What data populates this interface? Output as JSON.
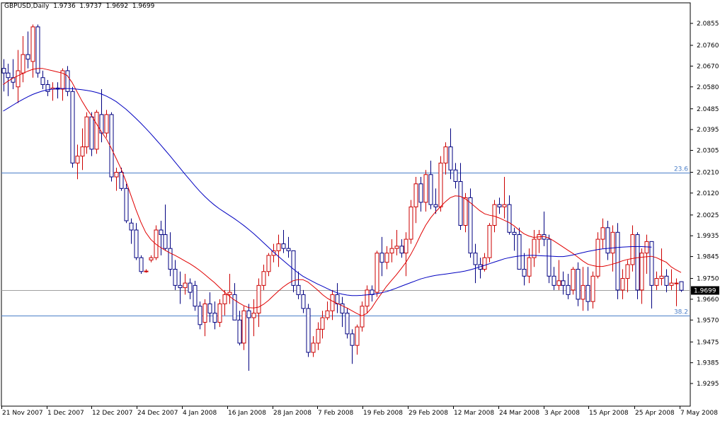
{
  "header": {
    "symbol": "GBPUSD,Daily",
    "ohlc": "1.9736  1.9737  1.9692  1.9699"
  },
  "colors": {
    "background": "#ffffff",
    "frame": "#000000",
    "bull_candle": "#cc0000",
    "bear_candle": "#000080",
    "ma_fast": "#e00000",
    "ma_slow": "#0000c0",
    "fib_line": "#4a7ec8",
    "price_line": "#a0a0a0",
    "price_label_bg": "#000000",
    "price_label_text": "#ffffff"
  },
  "chart_data": {
    "type": "candlestick",
    "ylim": [
      1.9295,
      2.0895
    ],
    "y_ticks": [
      "2.0855",
      "2.0760",
      "2.0670",
      "2.0580",
      "2.0485",
      "2.0395",
      "2.0305",
      "2.0210",
      "2.0120",
      "2.0025",
      "1.9935",
      "1.9845",
      "1.9750",
      "1.9660",
      "1.9570",
      "1.9475",
      "1.9385",
      "1.9295"
    ],
    "x_labels": [
      "21 Nov 2007",
      "1 Dec 2007",
      "12 Dec 2007",
      "24 Dec 2007",
      "4 Jan 2008",
      "16 Jan 2008",
      "28 Jan 2008",
      "7 Feb 2008",
      "19 Feb 2008",
      "29 Feb 2008",
      "12 Mar 2008",
      "24 Mar 2008",
      "3 Apr 2008",
      "15 Apr 2008",
      "25 Apr 2008",
      "7 May 2008"
    ],
    "current_price": "1.9699",
    "fib_levels": [
      {
        "label": "23.6",
        "value": 2.0208
      },
      {
        "label": "38.2",
        "value": 1.959
      }
    ],
    "candles": [
      [
        2.066,
        2.07,
        2.056,
        2.064
      ],
      [
        2.064,
        2.068,
        2.054,
        2.062
      ],
      [
        2.062,
        2.07,
        2.057,
        2.06
      ],
      [
        2.058,
        2.074,
        2.051,
        2.065
      ],
      [
        2.064,
        2.08,
        2.06,
        2.072
      ],
      [
        2.072,
        2.082,
        2.066,
        2.07
      ],
      [
        2.069,
        2.085,
        2.062,
        2.084
      ],
      [
        2.084,
        2.085,
        2.062,
        2.064
      ],
      [
        2.062,
        2.065,
        2.057,
        2.059
      ],
      [
        2.059,
        2.061,
        2.054,
        2.056
      ],
      [
        2.057,
        2.06,
        2.052,
        2.0575
      ],
      [
        2.0575,
        2.06,
        2.053,
        2.057
      ],
      [
        2.057,
        2.066,
        2.052,
        2.065
      ],
      [
        2.065,
        2.067,
        2.054,
        2.056
      ],
      [
        2.056,
        2.058,
        2.023,
        2.025
      ],
      [
        2.025,
        2.033,
        2.018,
        2.028
      ],
      [
        2.028,
        2.04,
        2.022,
        2.032
      ],
      [
        2.032,
        2.047,
        2.029,
        2.045
      ],
      [
        2.045,
        2.047,
        2.028,
        2.031
      ],
      [
        2.031,
        2.048,
        2.029,
        2.047
      ],
      [
        2.046,
        2.057,
        2.034,
        2.038
      ],
      [
        2.038,
        2.048,
        2.036,
        2.046
      ],
      [
        2.046,
        2.047,
        2.017,
        2.019
      ],
      [
        2.019,
        2.023,
        2.013,
        2.021
      ],
      [
        2.021,
        2.023,
        2.013,
        2.014
      ],
      [
        2.014,
        2.016,
        1.999,
        2.0
      ],
      [
        1.999,
        2.001,
        1.99,
        1.996
      ],
      [
        1.996,
        1.999,
        1.983,
        1.984
      ],
      [
        1.984,
        1.985,
        1.977,
        1.978
      ],
      [
        1.978,
        1.979,
        1.9775,
        1.9782
      ],
      [
        1.983,
        1.985,
        1.982,
        1.984
      ],
      [
        1.984,
        1.998,
        1.983,
        1.996
      ],
      [
        1.996,
        2.0,
        1.985,
        1.994
      ],
      [
        1.994,
        2.007,
        1.987,
        1.988
      ],
      [
        1.988,
        1.995,
        1.976,
        1.979
      ],
      [
        1.979,
        1.983,
        1.97,
        1.972
      ],
      [
        1.972,
        1.978,
        1.964,
        1.971
      ],
      [
        1.971,
        1.977,
        1.968,
        1.973
      ],
      [
        1.973,
        1.975,
        1.966,
        1.969
      ],
      [
        1.972,
        1.974,
        1.961,
        1.963
      ],
      [
        1.963,
        1.965,
        1.953,
        1.955
      ],
      [
        1.956,
        1.966,
        1.95,
        1.964
      ],
      [
        1.964,
        1.969,
        1.956,
        1.96
      ],
      [
        1.96,
        1.965,
        1.953,
        1.956
      ],
      [
        1.956,
        1.966,
        1.954,
        1.964
      ],
      [
        1.964,
        1.97,
        1.959,
        1.968
      ],
      [
        1.968,
        1.977,
        1.964,
        1.969
      ],
      [
        1.968,
        1.973,
        1.957,
        1.957
      ],
      [
        1.957,
        1.961,
        1.946,
        1.947
      ],
      [
        1.947,
        1.963,
        1.944,
        1.961
      ],
      [
        1.961,
        1.964,
        1.935,
        1.958
      ],
      [
        1.958,
        1.966,
        1.95,
        1.96
      ],
      [
        1.96,
        1.975,
        1.954,
        1.972
      ],
      [
        1.972,
        1.981,
        1.97,
        1.978
      ],
      [
        1.978,
        1.986,
        1.976,
        1.985
      ],
      [
        1.985,
        1.99,
        1.982,
        1.987
      ],
      [
        1.987,
        1.994,
        1.98,
        1.99
      ],
      [
        1.99,
        1.996,
        1.986,
        1.988
      ],
      [
        1.988,
        1.993,
        1.984,
        1.987
      ],
      [
        1.987,
        1.987,
        1.969,
        1.972
      ],
      [
        1.972,
        1.978,
        1.966,
        1.968
      ],
      [
        1.968,
        1.97,
        1.96,
        1.962
      ],
      [
        1.962,
        1.964,
        1.941,
        1.943
      ],
      [
        1.943,
        1.95,
        1.941,
        1.947
      ],
      [
        1.947,
        1.956,
        1.944,
        1.953
      ],
      [
        1.953,
        1.961,
        1.949,
        1.958
      ],
      [
        1.958,
        1.965,
        1.957,
        1.961
      ],
      [
        1.961,
        1.97,
        1.957,
        1.968
      ],
      [
        1.968,
        1.973,
        1.96,
        1.964
      ],
      [
        1.964,
        1.967,
        1.954,
        1.96
      ],
      [
        1.96,
        1.962,
        1.949,
        1.951
      ],
      [
        1.951,
        1.953,
        1.938,
        1.946
      ],
      [
        1.946,
        1.955,
        1.942,
        1.954
      ],
      [
        1.954,
        1.965,
        1.952,
        1.963
      ],
      [
        1.963,
        1.972,
        1.96,
        1.97
      ],
      [
        1.97,
        1.972,
        1.965,
        1.968
      ],
      [
        1.969,
        1.987,
        1.967,
        1.986
      ],
      [
        1.986,
        1.993,
        1.976,
        1.982
      ],
      [
        1.982,
        1.989,
        1.979,
        1.986
      ],
      [
        1.986,
        1.992,
        1.982,
        1.988
      ],
      [
        1.988,
        1.996,
        1.985,
        1.989
      ],
      [
        1.989,
        1.992,
        1.984,
        1.986
      ],
      [
        1.986,
        1.995,
        1.976,
        1.992
      ],
      [
        1.992,
        2.009,
        1.99,
        2.006
      ],
      [
        2.006,
        2.019,
        1.999,
        2.016
      ],
      [
        2.016,
        2.019,
        2.004,
        2.008
      ],
      [
        2.008,
        2.022,
        2.004,
        2.02
      ],
      [
        2.02,
        2.026,
        2.005,
        2.007
      ],
      [
        2.007,
        2.014,
        2.003,
        2.006
      ],
      [
        2.006,
        2.028,
        2.004,
        2.025
      ],
      [
        2.025,
        2.034,
        2.02,
        2.032
      ],
      [
        2.032,
        2.04,
        2.018,
        2.022
      ],
      [
        2.022,
        2.025,
        2.014,
        2.017
      ],
      [
        2.017,
        2.025,
        1.996,
        1.998
      ],
      [
        1.998,
        2.012,
        1.995,
        2.01
      ],
      [
        2.01,
        2.014,
        1.984,
        1.986
      ],
      [
        1.986,
        1.99,
        1.973,
        1.981
      ],
      [
        1.981,
        1.984,
        1.975,
        1.979
      ],
      [
        1.979,
        1.986,
        1.978,
        1.984
      ],
      [
        1.984,
        1.999,
        1.982,
        1.998
      ],
      [
        1.998,
        2.009,
        1.995,
        2.007
      ],
      [
        2.007,
        2.01,
        2.003,
        2.006
      ],
      [
        2.006,
        2.019,
        2.001,
        2.007
      ],
      [
        2.007,
        2.011,
        1.994,
        1.995
      ],
      [
        1.995,
        1.997,
        1.987,
        1.994
      ],
      [
        1.994,
        1.997,
        1.979,
        1.979
      ],
      [
        1.979,
        1.986,
        1.972,
        1.976
      ],
      [
        1.976,
        1.988,
        1.973,
        1.984
      ],
      [
        1.984,
        1.996,
        1.98,
        1.992
      ],
      [
        1.992,
        1.996,
        1.986,
        1.994
      ],
      [
        1.994,
        2.004,
        1.989,
        1.992
      ],
      [
        1.992,
        1.994,
        1.973,
        1.976
      ],
      [
        1.976,
        1.98,
        1.97,
        1.972
      ],
      [
        1.972,
        1.983,
        1.97,
        1.974
      ],
      [
        1.974,
        1.978,
        1.968,
        1.972
      ],
      [
        1.972,
        1.977,
        1.966,
        1.968
      ],
      [
        1.97,
        1.98,
        1.968,
        1.979
      ],
      [
        1.979,
        1.982,
        1.963,
        1.966
      ],
      [
        1.966,
        1.98,
        1.961,
        1.972
      ],
      [
        1.972,
        1.98,
        1.961,
        1.965
      ],
      [
        1.965,
        1.978,
        1.962,
        1.976
      ],
      [
        1.976,
        1.995,
        1.975,
        1.992
      ],
      [
        1.992,
        2.001,
        1.988,
        1.997
      ],
      [
        1.997,
        2.0,
        1.983,
        1.986
      ],
      [
        1.986,
        1.998,
        1.978,
        1.995
      ],
      [
        1.995,
        1.999,
        1.966,
        1.97
      ],
      [
        1.97,
        1.979,
        1.966,
        1.975
      ],
      [
        1.975,
        1.983,
        1.969,
        1.981
      ],
      [
        1.981,
        1.998,
        1.978,
        1.994
      ],
      [
        1.994,
        1.995,
        1.966,
        1.97
      ],
      [
        1.97,
        1.988,
        1.964,
        1.986
      ],
      [
        1.986,
        1.994,
        1.977,
        1.991
      ],
      [
        1.991,
        1.991,
        1.962,
        1.972
      ],
      [
        1.972,
        1.978,
        1.97,
        1.975
      ],
      [
        1.975,
        1.988,
        1.972,
        1.976
      ],
      [
        1.976,
        1.979,
        1.969,
        1.972
      ],
      [
        1.972,
        1.979,
        1.97,
        1.973
      ],
      [
        1.973,
        1.975,
        1.963,
        1.973
      ],
      [
        1.9736,
        1.9737,
        1.9692,
        1.9699
      ]
    ],
    "series": [
      {
        "name": "",
        "color": "#e00000",
        "values": [
          2.059,
          2.0605,
          2.0618,
          2.0628,
          2.0638,
          2.0648,
          2.0656,
          2.066,
          2.066,
          2.0655,
          2.065,
          2.0645,
          2.064,
          2.063,
          2.06,
          2.056,
          2.052,
          2.0485,
          2.0455,
          2.042,
          2.0385,
          2.0355,
          2.0315,
          2.027,
          2.0225,
          2.017,
          2.011,
          2.005,
          1.9995,
          1.995,
          1.992,
          1.99,
          1.9885,
          1.9872,
          1.986,
          1.985,
          1.9838,
          1.9826,
          1.9814,
          1.98,
          1.9785,
          1.9768,
          1.975,
          1.9732,
          1.9712,
          1.9692,
          1.9674,
          1.9658,
          1.9644,
          1.9632,
          1.9624,
          1.9622,
          1.9626,
          1.9638,
          1.9655,
          1.9675,
          1.9695,
          1.9713,
          1.9728,
          1.974,
          1.9745,
          1.9745,
          1.9735,
          1.9718,
          1.97,
          1.968,
          1.9664,
          1.9652,
          1.9642,
          1.9632,
          1.9622,
          1.961,
          1.9598,
          1.9588,
          1.9598,
          1.9622,
          1.9655,
          1.9685,
          1.9715,
          1.974,
          1.9765,
          1.9792,
          1.982,
          1.9855,
          1.9895,
          1.994,
          1.998,
          2.0012,
          2.0038,
          2.006,
          2.0082,
          2.01,
          2.0108,
          2.0106,
          2.0096,
          2.008,
          2.0062,
          2.0044,
          2.003,
          2.0024,
          2.002,
          2.0012,
          2.0002,
          1.9992,
          1.9978,
          1.996,
          1.9944,
          1.9934,
          1.9928,
          1.993,
          1.9932,
          1.9926,
          1.9914,
          1.99,
          1.9886,
          1.9872,
          1.9858,
          1.9842,
          1.9826,
          1.9812,
          1.9806,
          1.9802,
          1.9802,
          1.9806,
          1.9812,
          1.9818,
          1.9826,
          1.9832,
          1.9836,
          1.984,
          1.9842,
          1.9844,
          1.9846,
          1.984,
          1.983,
          1.982,
          1.98,
          1.9787,
          1.9776
        ]
      },
      {
        "name": "",
        "color": "#0000c0",
        "values": [
          2.0475,
          2.0488,
          2.0501,
          2.0514,
          2.0526,
          2.0537,
          2.0547,
          2.0555,
          2.0562,
          2.0567,
          2.057,
          2.0572,
          2.0573,
          2.0573,
          2.0572,
          2.057,
          2.0568,
          2.0565,
          2.0561,
          2.0556,
          2.0549,
          2.054,
          2.0529,
          2.0516,
          2.05,
          2.0483,
          2.0464,
          2.0444,
          2.0423,
          2.0401,
          2.0378,
          2.0354,
          2.033,
          2.0305,
          2.028,
          2.0254,
          2.0228,
          2.0202,
          2.0177,
          2.0152,
          2.0128,
          2.0106,
          2.0086,
          2.0068,
          2.0052,
          2.0038,
          2.0024,
          2.001,
          1.9995,
          1.9979,
          1.9962,
          1.9944,
          1.9925,
          1.9905,
          1.9885,
          1.9865,
          1.9846,
          1.9828,
          1.981,
          1.9792,
          1.9775,
          1.976,
          1.9748,
          1.9737,
          1.9726,
          1.9716,
          1.9706,
          1.9696,
          1.9688,
          1.9682,
          1.9678,
          1.9676,
          1.9676,
          1.9677,
          1.9679,
          1.9681,
          1.9684,
          1.9688,
          1.9693,
          1.97,
          1.9708,
          1.9716,
          1.9724,
          1.9732,
          1.974,
          1.9748,
          1.9754,
          1.9759,
          1.9763,
          1.9766,
          1.9769,
          1.9772,
          1.9775,
          1.9778,
          1.9782,
          1.9787,
          1.9793,
          1.98,
          1.9807,
          1.9814,
          1.9821,
          1.9828,
          1.9835,
          1.984,
          1.9844,
          1.9847,
          1.9849,
          1.985,
          1.985,
          1.9849,
          1.9848,
          1.9847,
          1.9846,
          1.9845,
          1.9845,
          1.9848,
          1.9852,
          1.9857,
          1.9862,
          1.9867,
          1.9871,
          1.9875,
          1.9878,
          1.988,
          1.9882,
          1.9884,
          1.9886,
          1.9887,
          1.9888,
          1.9888,
          1.9888,
          1.9887,
          1.9886
        ]
      }
    ]
  }
}
